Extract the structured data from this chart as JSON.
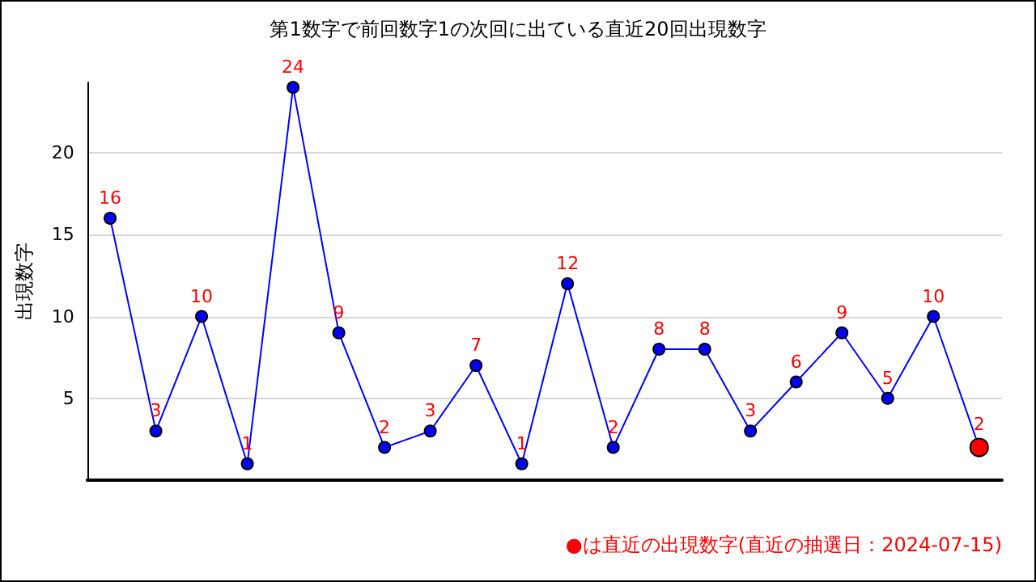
{
  "chart_data": {
    "type": "line",
    "title": "第1数字で前回数字1の次回に出ている直近20回出現数字",
    "ylabel": "出現数字",
    "categories": [
      null,
      null,
      null,
      null,
      null,
      null,
      null,
      null,
      null,
      null,
      null,
      null,
      null,
      null,
      null,
      null,
      null,
      null,
      null,
      null
    ],
    "series": [
      {
        "color": "#0000ff",
        "colors": [
          "#0000ff",
          "#0000ff",
          "#0000ff",
          "#0000ff",
          "#0000ff",
          "#0000ff",
          "#0000ff",
          "#0000ff",
          "#0000ff",
          "#0000ff",
          "#0000ff",
          "#0000ff",
          "#0000ff",
          "#0000ff",
          "#0000ff",
          "#0000ff",
          "#0000ff",
          "#0000ff",
          "#0000ff",
          "#ff0000"
        ],
        "values": [
          16,
          3,
          10,
          1,
          24,
          9,
          2,
          3,
          7,
          1,
          12,
          2,
          8,
          8,
          3,
          6,
          9,
          5,
          10,
          2
        ]
      }
    ],
    "ylim": [
      0,
      24.3
    ],
    "yticks": [
      5,
      10,
      15,
      20
    ],
    "grid": "y",
    "marker": "circle",
    "line_style": "solid",
    "data_labels": true,
    "annotations": [
      "●は直近の出現数字(直近の抽選日：2024-07-15)"
    ]
  }
}
